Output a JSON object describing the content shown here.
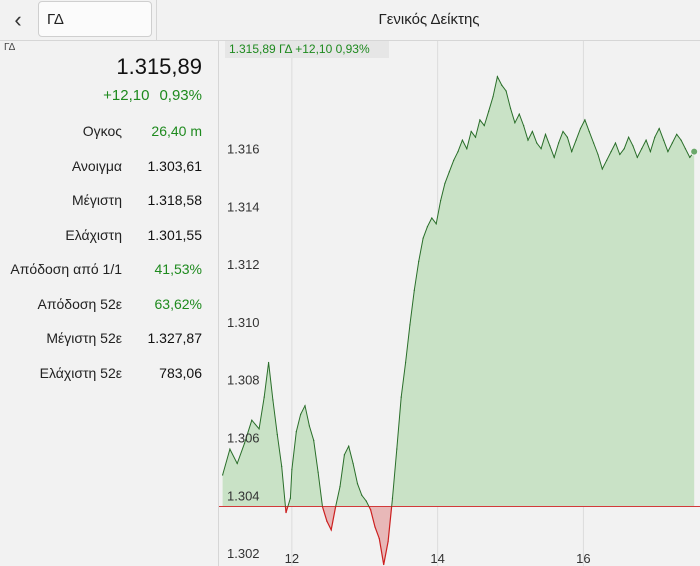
{
  "header": {
    "back_icon": "chevron-left-icon",
    "search_value": "ΓΔ",
    "title": "Γενικός Δείκτης"
  },
  "summary": {
    "symbol": "ΓΔ",
    "price": "1.315,89",
    "change": "+12,10",
    "change_pct": "0,93%",
    "positive_color": "#1e8a1e",
    "negative_color": "#cc2020"
  },
  "stats": [
    {
      "label": "Ογκος",
      "value": "26,40 m",
      "highlight": true
    },
    {
      "label": "Ανοιγμα",
      "value": "1.303,61",
      "highlight": false
    },
    {
      "label": "Μέγιστη",
      "value": "1.318,58",
      "highlight": false
    },
    {
      "label": "Ελάχιστη",
      "value": "1.301,55",
      "highlight": false
    },
    {
      "label": "Απόδοση από 1/1",
      "value": "41,53%",
      "highlight": true
    },
    {
      "label": "Απόδοση 52ε",
      "value": "63,62%",
      "highlight": true
    },
    {
      "label": "Μέγιστη 52ε",
      "value": "1.327,87",
      "highlight": false
    },
    {
      "label": "Ελάχιστη 52ε",
      "value": "783,06",
      "highlight": false
    }
  ],
  "chart_data": {
    "type": "area",
    "title": "",
    "legend_text": "1.315,89 ΓΔ +12,10 0,93%",
    "xlabel": "",
    "ylabel": "",
    "baseline": 1303.61,
    "xlim": [
      11.0,
      17.6
    ],
    "ylim": [
      1301.55,
      1318.9
    ],
    "x_ticks": [
      12,
      14,
      16
    ],
    "x_tick_labels": [
      "12",
      "14",
      "16"
    ],
    "y_ticks": [
      1302,
      1304,
      1306,
      1308,
      1310,
      1312,
      1314,
      1316
    ],
    "y_tick_labels": [
      "1.302",
      "1.304",
      "1.306",
      "1.308",
      "1.310",
      "1.312",
      "1.314",
      "1.316"
    ],
    "grid": true,
    "line_color": "#2a6e2a",
    "fill_color": "#c9e2c6",
    "below_line_color": "#cc2020",
    "below_fill_color": "#e8b8b8",
    "baseline_color": "#d23a3a",
    "series": [
      {
        "x": [
          11.05,
          11.15,
          11.25,
          11.35,
          11.45,
          11.55,
          11.62,
          11.68,
          11.74,
          11.8,
          11.86,
          11.92,
          11.98,
          12.0,
          12.06,
          12.12,
          12.18,
          12.24,
          12.3,
          12.36,
          12.42,
          12.48,
          12.54,
          12.6,
          12.66,
          12.72,
          12.78,
          12.84,
          12.9,
          12.96,
          13.02,
          13.08,
          13.14,
          13.2,
          13.26,
          13.32,
          13.38,
          13.44,
          13.5,
          13.56,
          13.62,
          13.68,
          13.74,
          13.8,
          13.86,
          13.92,
          13.98,
          14.04,
          14.1,
          14.16,
          14.22,
          14.28,
          14.34,
          14.4,
          14.46,
          14.52,
          14.58,
          14.64,
          14.7,
          14.76,
          14.82,
          14.88,
          14.94,
          15.0,
          15.06,
          15.12,
          15.18,
          15.24,
          15.3,
          15.36,
          15.42,
          15.48,
          15.54,
          15.6,
          15.66,
          15.72,
          15.78,
          15.84,
          15.9,
          15.96,
          16.02,
          16.08,
          16.14,
          16.2,
          16.26,
          16.32,
          16.38,
          16.44,
          16.5,
          16.56,
          16.62,
          16.68,
          16.74,
          16.8,
          16.86,
          16.92,
          16.98,
          17.04,
          17.1,
          17.16,
          17.22,
          17.28,
          17.34,
          17.4,
          17.46,
          17.52
        ],
        "values": [
          1304.7,
          1305.6,
          1305.1,
          1305.8,
          1306.6,
          1306.3,
          1307.4,
          1308.6,
          1307.3,
          1306.1,
          1305.0,
          1303.4,
          1303.9,
          1304.9,
          1306.2,
          1306.8,
          1307.1,
          1306.4,
          1305.9,
          1304.8,
          1303.6,
          1303.1,
          1302.8,
          1303.6,
          1304.3,
          1305.4,
          1305.7,
          1305.1,
          1304.4,
          1304.0,
          1303.8,
          1303.5,
          1302.9,
          1302.5,
          1301.6,
          1302.4,
          1303.9,
          1305.6,
          1307.4,
          1308.6,
          1309.9,
          1311.1,
          1312.1,
          1312.9,
          1313.3,
          1313.6,
          1313.4,
          1314.2,
          1314.8,
          1315.2,
          1315.6,
          1315.9,
          1316.3,
          1316.0,
          1316.6,
          1316.4,
          1317.0,
          1316.8,
          1317.3,
          1317.8,
          1318.5,
          1318.2,
          1318.0,
          1317.4,
          1316.9,
          1317.2,
          1316.8,
          1316.3,
          1316.6,
          1316.2,
          1316.0,
          1316.5,
          1316.1,
          1315.7,
          1316.2,
          1316.6,
          1316.4,
          1315.9,
          1316.3,
          1316.7,
          1317.0,
          1316.6,
          1316.2,
          1315.8,
          1315.3,
          1315.6,
          1315.9,
          1316.2,
          1315.8,
          1316.0,
          1316.4,
          1316.1,
          1315.7,
          1316.0,
          1316.3,
          1315.9,
          1316.4,
          1316.7,
          1316.3,
          1315.9,
          1316.2,
          1316.5,
          1316.3,
          1316.0,
          1315.7,
          1315.9
        ]
      }
    ]
  }
}
